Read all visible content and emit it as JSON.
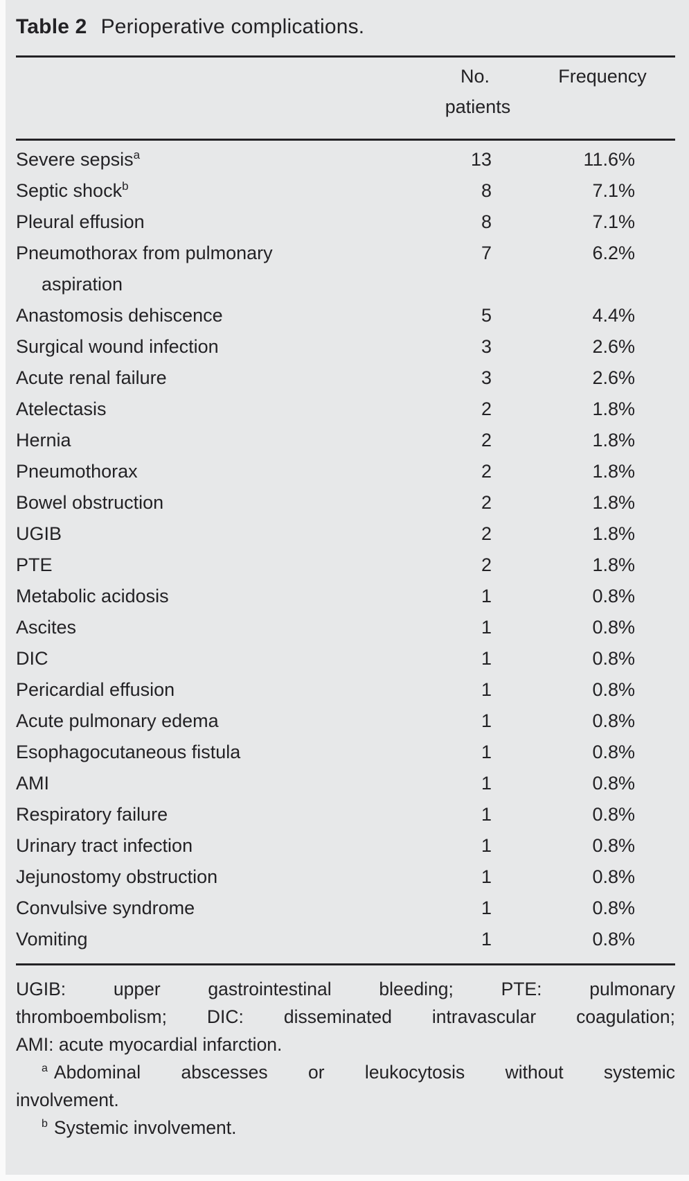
{
  "page": {
    "background_color": "#e7e8e9",
    "text_color": "#232225",
    "rule_color": "#232225"
  },
  "table": {
    "label": "Table 2",
    "caption": "Perioperative complications.",
    "header": {
      "no_line1": "No.",
      "no_line2": "patients",
      "frequency": "Frequency"
    },
    "rows": [
      {
        "name": "Severe sepsis",
        "marker": "a",
        "n": "13",
        "freq": "11.6%"
      },
      {
        "name": "Septic shock",
        "marker": "b",
        "n": "8",
        "freq": "7.1%"
      },
      {
        "name": "Pleural effusion",
        "n": "8",
        "freq": "7.1%"
      },
      {
        "name": "Pneumothorax from pulmonary",
        "name2": "aspiration",
        "n": "7",
        "freq": "6.2%"
      },
      {
        "name": "Anastomosis dehiscence",
        "n": "5",
        "freq": "4.4%"
      },
      {
        "name": "Surgical wound infection",
        "n": "3",
        "freq": "2.6%"
      },
      {
        "name": "Acute renal failure",
        "n": "3",
        "freq": "2.6%"
      },
      {
        "name": "Atelectasis",
        "n": "2",
        "freq": "1.8%"
      },
      {
        "name": "Hernia",
        "n": "2",
        "freq": "1.8%"
      },
      {
        "name": "Pneumothorax",
        "n": "2",
        "freq": "1.8%"
      },
      {
        "name": "Bowel obstruction",
        "n": "2",
        "freq": "1.8%"
      },
      {
        "name": "UGIB",
        "n": "2",
        "freq": "1.8%"
      },
      {
        "name": "PTE",
        "n": "2",
        "freq": "1.8%"
      },
      {
        "name": "Metabolic acidosis",
        "n": "1",
        "freq": "0.8%"
      },
      {
        "name": "Ascites",
        "n": "1",
        "freq": "0.8%"
      },
      {
        "name": "DIC",
        "n": "1",
        "freq": "0.8%"
      },
      {
        "name": "Pericardial effusion",
        "n": "1",
        "freq": "0.8%"
      },
      {
        "name": "Acute pulmonary edema",
        "n": "1",
        "freq": "0.8%"
      },
      {
        "name": "Esophagocutaneous fistula",
        "n": "1",
        "freq": "0.8%"
      },
      {
        "name": "AMI",
        "n": "1",
        "freq": "0.8%"
      },
      {
        "name": "Respiratory failure",
        "n": "1",
        "freq": "0.8%"
      },
      {
        "name": "Urinary tract infection",
        "n": "1",
        "freq": "0.8%"
      },
      {
        "name": "Jejunostomy obstruction",
        "n": "1",
        "freq": "0.8%"
      },
      {
        "name": "Convulsive syndrome",
        "n": "1",
        "freq": "0.8%"
      },
      {
        "name": "Vomiting",
        "n": "1",
        "freq": "0.8%"
      }
    ],
    "footnotes": {
      "abbrev": {
        "lines": [
          "UGIB: upper gastrointestinal bleeding; PTE: pulmonary",
          "thromboembolism; DIC: disseminated intravascular coagulation;",
          "AMI: acute myocardial infarction."
        ]
      },
      "note_a": {
        "marker": "a",
        "lines": [
          "Abdominal abscesses or leukocytosis without systemic",
          "involvement."
        ]
      },
      "note_b": {
        "marker": "b",
        "lines": [
          "Systemic involvement."
        ]
      }
    }
  }
}
